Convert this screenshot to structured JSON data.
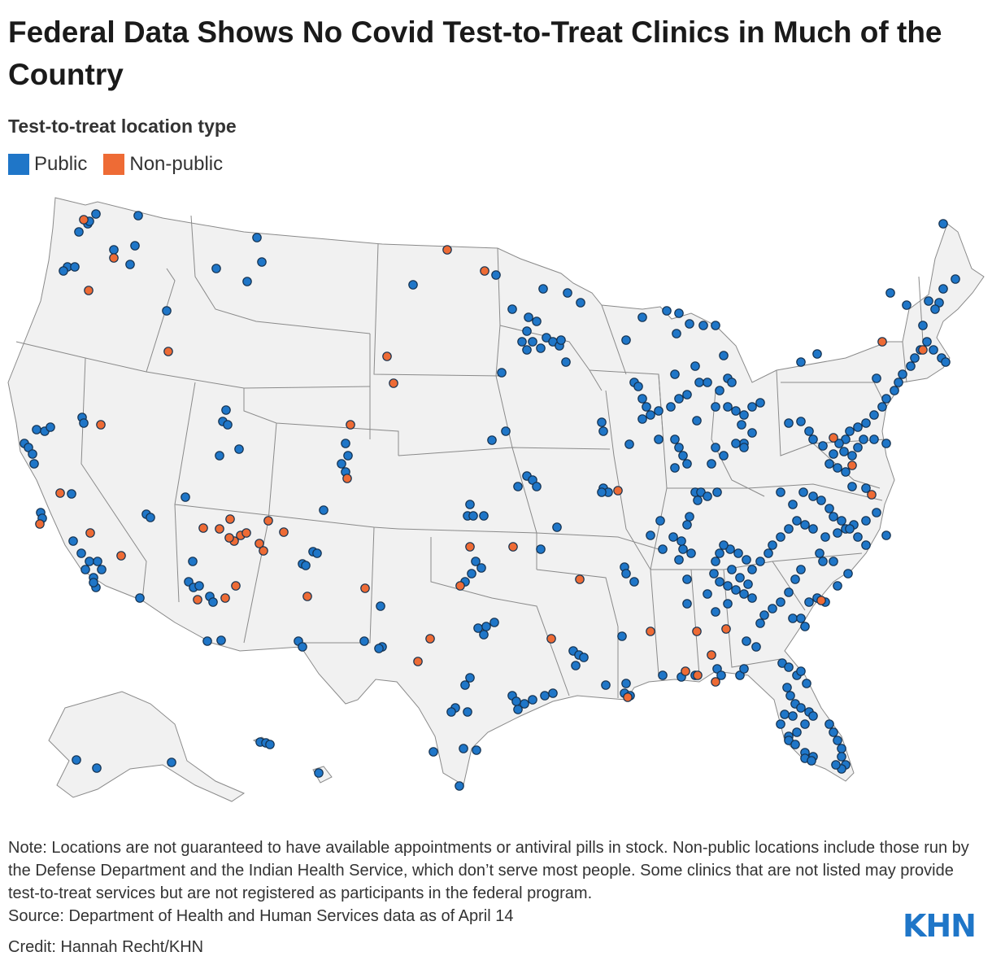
{
  "title": "Federal Data Shows No Covid Test-to-Treat Clinics in Much of the Country",
  "legend": {
    "title": "Test-to-treat location type",
    "items": [
      {
        "label": "Public",
        "color": "#1f76c8"
      },
      {
        "label": "Non-public",
        "color": "#ee6b35"
      }
    ]
  },
  "note": "Note: Locations are not guaranteed to have available appointments or antiviral pills in stock. Non-public locations include those run by the Defense Department and the Indian Health Service, which don’t serve most people. Some clinics that are not listed may provide test-to-treat services but are not registered as participants in the federal program.",
  "source": "Source: Department of Health and Human Services data as of April 14",
  "credit": "Credit: Hannah Recht/KHN",
  "logo_text": "KHN"
}
